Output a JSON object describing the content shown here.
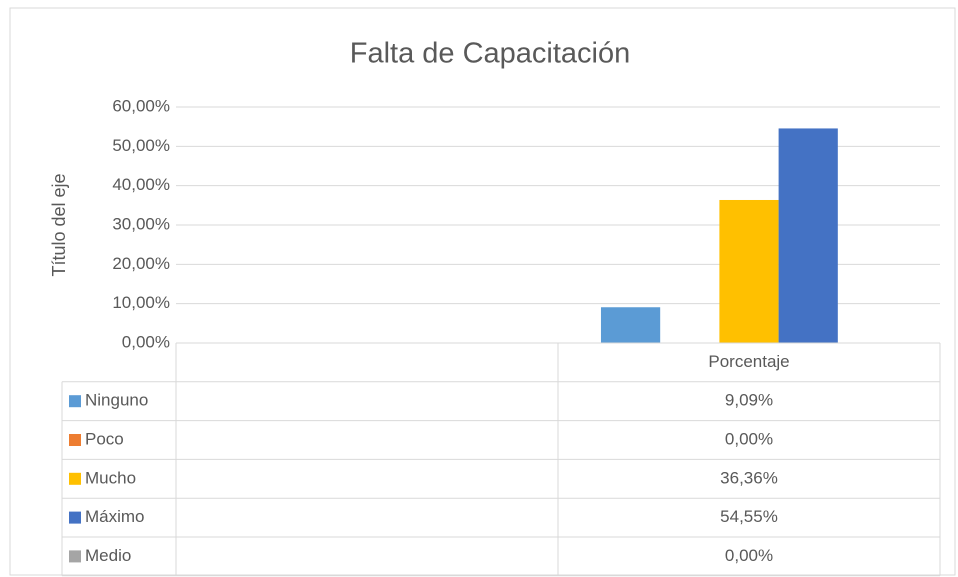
{
  "chart_data": {
    "type": "bar",
    "title": "Falta de Capacitación",
    "y_label": "Título del eje",
    "categories": [
      null,
      "Porcentaje"
    ],
    "series": [
      {
        "name": "Ninguno",
        "color": "#5b9bd5",
        "values": [
          null,
          9.09
        ],
        "value_labels": [
          null,
          "9,09%"
        ]
      },
      {
        "name": "Poco",
        "color": "#ed7d31",
        "values": [
          null,
          0
        ],
        "value_labels": [
          null,
          "0,00%"
        ]
      },
      {
        "name": "Mucho",
        "color": "#ffc000",
        "values": [
          null,
          36.36
        ],
        "value_labels": [
          null,
          "36,36%"
        ]
      },
      {
        "name": "Máximo",
        "color": "#4472c4",
        "values": [
          null,
          54.55
        ],
        "value_labels": [
          null,
          "54,55%"
        ]
      },
      {
        "name": "Medio",
        "color": "#a5a5a5",
        "values": [
          null,
          0
        ],
        "value_labels": [
          null,
          "0,00%"
        ]
      }
    ],
    "ylim": [
      0,
      60
    ],
    "yticks": [
      {
        "value": 0,
        "label": "0,00%"
      },
      {
        "value": 10,
        "label": "10,00%"
      },
      {
        "value": 20,
        "label": "20,00%"
      },
      {
        "value": 30,
        "label": "30,00%"
      },
      {
        "value": 40,
        "label": "40,00%"
      },
      {
        "value": 50,
        "label": "50,00%"
      },
      {
        "value": 60,
        "label": "60,00%"
      }
    ],
    "grid": true,
    "data_table": true
  }
}
